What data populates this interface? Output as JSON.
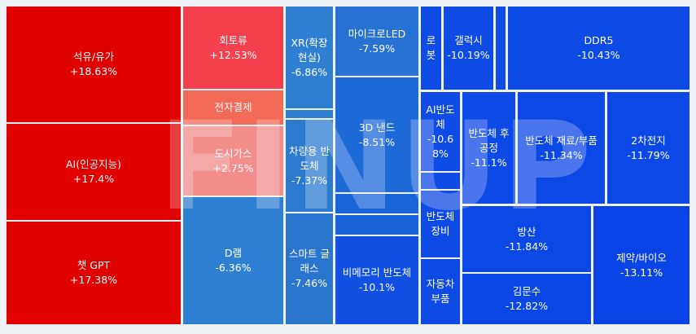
{
  "chart_data": {
    "type": "treemap",
    "watermark": "FINUP",
    "categories": [
      "석유/유가",
      "AI(인공지능)",
      "챗 GPT",
      "회토류",
      "전자결제",
      "도시가스",
      "D램",
      "XR(확장 현실)",
      "차량용 반도체",
      "스마트 글래스",
      "마이크로LED",
      "3D 낸드",
      "비메모리 반도체",
      "로 봇",
      "갤럭시",
      "DDR5",
      "AI반도체",
      "반도체 장비",
      "자동차 부품",
      "반도체 후공정",
      "반도체 재료/부품",
      "2차전지",
      "방산",
      "김문수",
      "제약/바이오"
    ],
    "values": [
      18.63,
      17.4,
      17.38,
      12.53,
      null,
      2.75,
      -6.36,
      -6.86,
      -7.37,
      -7.46,
      -7.59,
      -8.51,
      -10.1,
      null,
      -10.19,
      -10.43,
      -10.68,
      null,
      null,
      -11.1,
      -11.34,
      -11.79,
      -11.84,
      -12.82,
      -13.11
    ],
    "value_labels": [
      "+18.63%",
      "+17.4%",
      "+17.38%",
      "+12.53%",
      null,
      "+2.75%",
      "-6.36%",
      "-6.86%",
      "-7.37%",
      "-7.46%",
      "-7.59%",
      "-8.51%",
      "-10.1%",
      null,
      "-10.19%",
      "-10.43%",
      "-10.68%",
      null,
      null,
      "-11.1%",
      "-11.34%",
      "-11.79%",
      "-11.84%",
      "-12.82%",
      "-13.11%"
    ],
    "colors": [
      "#e00000",
      "#e00000",
      "#e00000",
      "#f4404c",
      "#f36a56",
      "#f18d8b",
      "#2f80d2",
      "#2f80d2",
      "#2d7bd1",
      "#2a76ce",
      "#2872d4",
      "#1d69d8",
      "#1150e2",
      "#0f4ce6",
      "#0f4ce6",
      "#0e4ae6",
      "#0f4ce6",
      "#0e4ae6",
      "#0e4ae6",
      "#0d49e6",
      "#0c48e6",
      "#0c48e6",
      "#0c48e6",
      "#0b46e6",
      "#0a44e6"
    ]
  }
}
